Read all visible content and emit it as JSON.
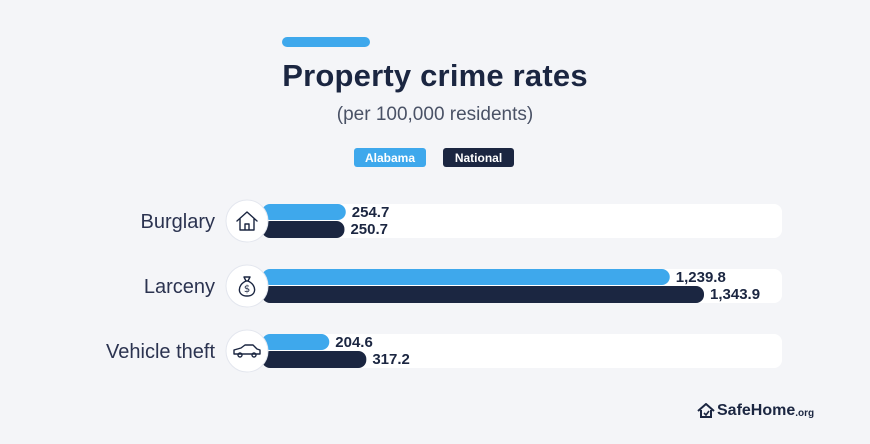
{
  "chart_data": {
    "type": "bar",
    "orientation": "horizontal",
    "title": "Property crime rates",
    "subtitle": "(per 100,000 residents)",
    "categories": [
      "Burglary",
      "Larceny",
      "Vehicle theft"
    ],
    "category_icons": [
      "house-icon",
      "money-bag-icon",
      "car-icon"
    ],
    "series": [
      {
        "name": "Alabama",
        "values": [
          254.7,
          1239.8,
          204.6
        ],
        "labels": [
          "254.7",
          "1,239.8",
          "204.6"
        ],
        "color": "#3ea8ec"
      },
      {
        "name": "National",
        "values": [
          250.7,
          1343.9,
          317.2
        ],
        "labels": [
          "250.7",
          "1,343.9",
          "317.2"
        ],
        "color": "#1b2641"
      }
    ],
    "xlim": [
      0,
      1500
    ],
    "grid": false,
    "legend_position": "top-center"
  },
  "brand": {
    "name": "SafeHome",
    "tld": ".org",
    "icon": "house-shield-icon"
  },
  "colors": {
    "background": "#f4f5f8",
    "track": "#ffffff",
    "accent": "#3ea8ec",
    "dark": "#1b2641"
  }
}
